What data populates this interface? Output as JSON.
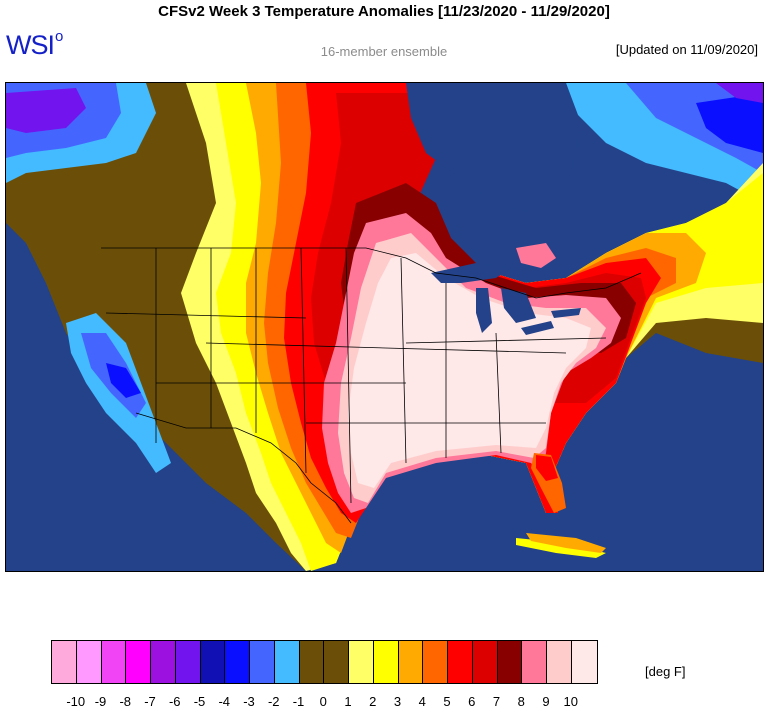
{
  "title": "CFSv2 Week 3 Temperature Anomalies [11/23/2020 - 11/29/2020]",
  "logo": {
    "text": "WSI",
    "mark": "o"
  },
  "subtitle": "16-member ensemble",
  "updated": "[Updated on 11/09/2020]",
  "legend": {
    "units": "[deg F]",
    "swatches": [
      {
        "color": "#ffaadd",
        "value": "-10"
      },
      {
        "color": "#ff99ff",
        "value": "-9"
      },
      {
        "color": "#f044f5",
        "value": "-8"
      },
      {
        "color": "#ff00ff",
        "value": "-7"
      },
      {
        "color": "#9c10e0",
        "value": "-6"
      },
      {
        "color": "#7214ee",
        "value": "-5"
      },
      {
        "color": "#1010b4",
        "value": "-4"
      },
      {
        "color": "#0a10ff",
        "value": "-3"
      },
      {
        "color": "#4466ff",
        "value": "-2"
      },
      {
        "color": "#44bbff",
        "value": "-1"
      },
      {
        "color": "#6b4f08",
        "value": "0"
      },
      {
        "color": "#6b4f08",
        "value": "1"
      },
      {
        "color": "#ffff66",
        "value": "2"
      },
      {
        "color": "#ffff00",
        "value": "3"
      },
      {
        "color": "#ffaa00",
        "value": "4"
      },
      {
        "color": "#ff6600",
        "value": "5"
      },
      {
        "color": "#ff0000",
        "value": "6"
      },
      {
        "color": "#dd0000",
        "value": "7"
      },
      {
        "color": "#880000",
        "value": "8"
      },
      {
        "color": "#ff7799",
        "value": "9"
      },
      {
        "color": "#ffcccc",
        "value": "10"
      },
      {
        "color": "#ffe8e8",
        "value": ""
      }
    ]
  },
  "map": {
    "ocean_color": "#234289",
    "region_names": [
      "alaska-cool-anomaly",
      "western-canada-neutral",
      "canadian-prairies-warm",
      "hudson-bay-warm",
      "eastern-canada-warm",
      "great-lakes-warm",
      "eastern-us-very-warm",
      "west-coast-cool",
      "mexico-neutral",
      "greenland-cool"
    ]
  }
}
